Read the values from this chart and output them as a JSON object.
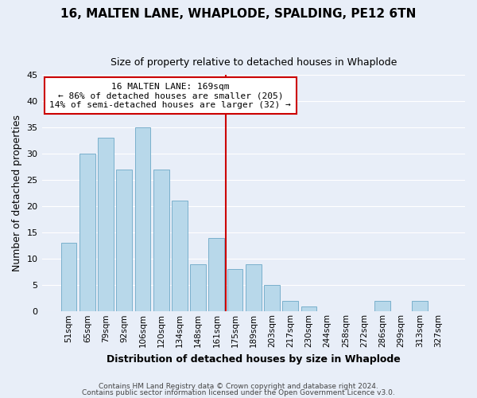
{
  "title": "16, MALTEN LANE, WHAPLODE, SPALDING, PE12 6TN",
  "subtitle": "Size of property relative to detached houses in Whaplode",
  "xlabel": "Distribution of detached houses by size in Whaplode",
  "ylabel": "Number of detached properties",
  "bar_labels": [
    "51sqm",
    "65sqm",
    "79sqm",
    "92sqm",
    "106sqm",
    "120sqm",
    "134sqm",
    "148sqm",
    "161sqm",
    "175sqm",
    "189sqm",
    "203sqm",
    "217sqm",
    "230sqm",
    "244sqm",
    "258sqm",
    "272sqm",
    "286sqm",
    "299sqm",
    "313sqm",
    "327sqm"
  ],
  "bar_values": [
    13,
    30,
    33,
    27,
    35,
    27,
    21,
    9,
    14,
    8,
    9,
    5,
    2,
    1,
    0,
    0,
    0,
    2,
    0,
    2,
    0
  ],
  "bar_color": "#b8d8ea",
  "bar_edge_color": "#7ab0cc",
  "vline_x": 8.5,
  "vline_color": "#cc0000",
  "ylim": [
    0,
    45
  ],
  "yticks": [
    0,
    5,
    10,
    15,
    20,
    25,
    30,
    35,
    40,
    45
  ],
  "annotation_title": "16 MALTEN LANE: 169sqm",
  "annotation_line1": "← 86% of detached houses are smaller (205)",
  "annotation_line2": "14% of semi-detached houses are larger (32) →",
  "annotation_box_color": "#ffffff",
  "annotation_box_edge": "#cc0000",
  "footer1": "Contains HM Land Registry data © Crown copyright and database right 2024.",
  "footer2": "Contains public sector information licensed under the Open Government Licence v3.0.",
  "background_color": "#e8eef8",
  "grid_color": "#ffffff",
  "title_fontsize": 11,
  "subtitle_fontsize": 9
}
